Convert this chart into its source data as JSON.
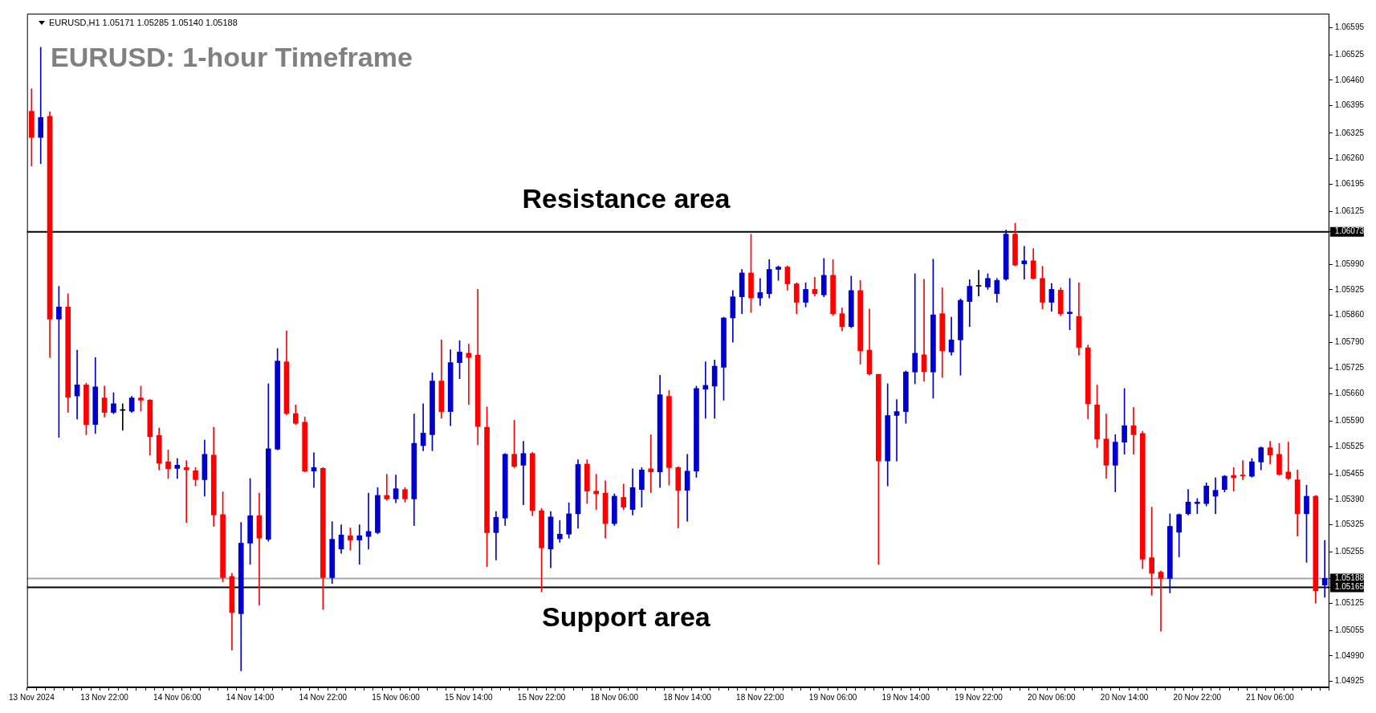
{
  "chart_data": {
    "type": "candlestick",
    "title": "EURUSD: 1-hour Timeframe",
    "annotations": [
      "EURUSD,H1 1.05171 1.05285 1.05140 1.05188"
    ],
    "categories": [
      "13 Nov 2024",
      null,
      null,
      null,
      null,
      null,
      null,
      null,
      "13 Nov 22:00",
      null,
      null,
      null,
      null,
      null,
      null,
      null,
      "14 Nov 06:00",
      null,
      null,
      null,
      null,
      null,
      null,
      null,
      "14 Nov 14:00",
      null,
      null,
      null,
      null,
      null,
      null,
      null,
      "14 Nov 22:00",
      null,
      null,
      null,
      null,
      null,
      null,
      null,
      "15 Nov 06:00",
      null,
      null,
      null,
      null,
      null,
      null,
      null,
      "15 Nov 14:00",
      null,
      null,
      null,
      null,
      null,
      null,
      null,
      "15 Nov 22:00",
      null,
      null,
      null,
      null,
      null,
      null,
      null,
      "18 Nov 06:00",
      null,
      null,
      null,
      null,
      null,
      null,
      null,
      "18 Nov 14:00",
      null,
      null,
      null,
      null,
      null,
      null,
      null,
      "18 Nov 22:00",
      null,
      null,
      null,
      null,
      null,
      null,
      null,
      "19 Nov 06:00",
      null,
      null,
      null,
      null,
      null,
      null,
      null,
      "19 Nov 14:00",
      null,
      null,
      null,
      null,
      null,
      null,
      null,
      "19 Nov 22:00",
      null,
      null,
      null,
      null,
      null,
      null,
      null,
      "20 Nov 06:00",
      null,
      null,
      null,
      null,
      null,
      null,
      null,
      "20 Nov 14:00",
      null,
      null,
      null,
      null,
      null,
      null,
      null,
      "20 Nov 22:00",
      null,
      null,
      null,
      null,
      null,
      null,
      null,
      "21 Nov 06:00",
      null,
      null,
      null,
      null,
      null,
      null
    ],
    "ohlc": [
      [
        1.06381,
        1.06438,
        1.06241,
        1.06314
      ],
      [
        1.06314,
        1.06544,
        1.06247,
        1.06365
      ],
      [
        1.06368,
        1.06379,
        1.05752,
        1.0585
      ],
      [
        1.0585,
        1.05934,
        1.05548,
        1.05881
      ],
      [
        1.05881,
        1.05915,
        1.05612,
        1.05651
      ],
      [
        1.05654,
        1.05771,
        1.05595,
        1.05682
      ],
      [
        1.05682,
        1.05687,
        1.05555,
        1.05581
      ],
      [
        1.05581,
        1.05752,
        1.05558,
        1.05677
      ],
      [
        1.05649,
        1.05679,
        1.056,
        1.05612
      ],
      [
        1.05612,
        1.05662,
        1.05608,
        1.05634
      ],
      [
        1.05617,
        1.05634,
        1.05566,
        1.05617
      ],
      [
        1.05615,
        1.05653,
        1.05612,
        1.05649
      ],
      [
        1.05649,
        1.05679,
        1.05615,
        1.05643
      ],
      [
        1.05643,
        1.05645,
        1.05503,
        1.0555
      ],
      [
        1.05553,
        1.05572,
        1.05465,
        1.05482
      ],
      [
        1.05486,
        1.05516,
        1.05443,
        1.05468
      ],
      [
        1.05469,
        1.05494,
        1.05443,
        1.05477
      ],
      [
        1.05471,
        1.05489,
        1.05331,
        1.05465
      ],
      [
        1.05463,
        1.05471,
        1.05424,
        1.0544
      ],
      [
        1.0544,
        1.05541,
        1.05398,
        1.05505
      ],
      [
        1.05503,
        1.05574,
        1.05321,
        1.0535
      ],
      [
        1.05351,
        1.05409,
        1.05179,
        1.0519
      ],
      [
        1.05193,
        1.05201,
        1.05005,
        1.05101
      ],
      [
        1.05098,
        1.05331,
        1.04952,
        1.05278
      ],
      [
        1.05278,
        1.05443,
        1.05224,
        1.05348
      ],
      [
        1.05348,
        1.05406,
        1.0512,
        1.05291
      ],
      [
        1.05288,
        1.05685,
        1.05283,
        1.05519
      ],
      [
        1.05518,
        1.05775,
        1.05516,
        1.05743
      ],
      [
        1.05741,
        1.0582,
        1.05606,
        1.05609
      ],
      [
        1.05609,
        1.05631,
        1.05581,
        1.05584
      ],
      [
        1.05587,
        1.056,
        1.0546,
        1.05462
      ],
      [
        1.05462,
        1.05509,
        1.0542,
        1.05471
      ],
      [
        1.05469,
        1.05471,
        1.05109,
        1.0519
      ],
      [
        1.0519,
        1.05333,
        1.05175,
        1.05288
      ],
      [
        1.05263,
        1.05325,
        1.05252,
        1.05299
      ],
      [
        1.05297,
        1.05317,
        1.0526,
        1.05286
      ],
      [
        1.05286,
        1.05325,
        1.05224,
        1.05297
      ],
      [
        1.05295,
        1.05406,
        1.05263,
        1.05308
      ],
      [
        1.05305,
        1.0542,
        1.05302,
        1.054
      ],
      [
        1.054,
        1.05454,
        1.05387,
        1.05391
      ],
      [
        1.05391,
        1.05452,
        1.05381,
        1.05417
      ],
      [
        1.05415,
        1.0542,
        1.05383,
        1.05391
      ],
      [
        1.05391,
        1.05608,
        1.05323,
        1.05533
      ],
      [
        1.05527,
        1.05634,
        1.05514,
        1.05559
      ],
      [
        1.05555,
        1.05713,
        1.05514,
        1.05692
      ],
      [
        1.05692,
        1.05797,
        1.05597,
        1.05614
      ],
      [
        1.05614,
        1.05772,
        1.05578,
        1.05739
      ],
      [
        1.05739,
        1.05795,
        1.05698,
        1.05766
      ],
      [
        1.05763,
        1.05786,
        1.05632,
        1.05752
      ],
      [
        1.05758,
        1.05926,
        1.05529,
        1.05576
      ],
      [
        1.05574,
        1.05626,
        1.05218,
        1.05305
      ],
      [
        1.05305,
        1.05359,
        1.05235,
        1.05344
      ],
      [
        1.05342,
        1.05507,
        1.05323,
        1.05505
      ],
      [
        1.05505,
        1.05592,
        1.05471,
        1.05474
      ],
      [
        1.05477,
        1.05538,
        1.05376,
        1.05507
      ],
      [
        1.05507,
        1.0551,
        1.05348,
        1.05361
      ],
      [
        1.05361,
        1.05367,
        1.05154,
        1.05266
      ],
      [
        1.05263,
        1.05359,
        1.05215,
        1.05345
      ],
      [
        1.05289,
        1.05336,
        1.0528,
        1.05301
      ],
      [
        1.05301,
        1.05381,
        1.05291,
        1.05353
      ],
      [
        1.05353,
        1.05491,
        1.05316,
        1.05479
      ],
      [
        1.0548,
        1.05491,
        1.05379,
        1.05411
      ],
      [
        1.05411,
        1.05454,
        1.05364,
        1.05404
      ],
      [
        1.05406,
        1.05437,
        1.05291,
        1.05328
      ],
      [
        1.05328,
        1.05404,
        1.05323,
        1.05398
      ],
      [
        1.05395,
        1.05429,
        1.05364,
        1.0537
      ],
      [
        1.05364,
        1.05468,
        1.0535,
        1.0542
      ],
      [
        1.05415,
        1.05471,
        1.0537,
        1.05465
      ],
      [
        1.05468,
        1.05555,
        1.05407,
        1.0546
      ],
      [
        1.0546,
        1.05707,
        1.0542,
        1.05657
      ],
      [
        1.05653,
        1.05668,
        1.05426,
        1.05471
      ],
      [
        1.05471,
        1.05473,
        1.05317,
        1.05413
      ],
      [
        1.05413,
        1.05505,
        1.05334,
        1.05462
      ],
      [
        1.05462,
        1.05679,
        1.05446,
        1.05673
      ],
      [
        1.05671,
        1.05741,
        1.05597,
        1.05681
      ],
      [
        1.05679,
        1.05746,
        1.05597,
        1.0573
      ],
      [
        1.05727,
        1.05855,
        1.05643,
        1.05853
      ],
      [
        1.05853,
        1.05923,
        1.05791,
        1.05907
      ],
      [
        1.05907,
        1.05977,
        1.05864,
        1.05968
      ],
      [
        1.05968,
        1.06067,
        1.05867,
        1.05904
      ],
      [
        1.05904,
        1.05954,
        1.05885,
        1.05918
      ],
      [
        1.05915,
        1.06002,
        1.05904,
        1.05977
      ],
      [
        1.05977,
        1.05986,
        1.05949,
        1.05983
      ],
      [
        1.05983,
        1.05986,
        1.05924,
        1.0594
      ],
      [
        1.0594,
        1.05943,
        1.05864,
        1.05893
      ],
      [
        1.05893,
        1.05943,
        1.05881,
        1.05926
      ],
      [
        1.05926,
        1.05957,
        1.05909,
        1.05915
      ],
      [
        1.05912,
        1.06005,
        1.05907,
        1.05962
      ],
      [
        1.05962,
        1.06002,
        1.05859,
        1.05864
      ],
      [
        1.05864,
        1.05879,
        1.0582,
        1.05831
      ],
      [
        1.05831,
        1.0596,
        1.05828,
        1.05923
      ],
      [
        1.05923,
        1.05949,
        1.05735,
        1.05769
      ],
      [
        1.05771,
        1.05876,
        1.05707,
        1.0571
      ],
      [
        1.05709,
        1.05709,
        1.05224,
        1.05488
      ],
      [
        1.05488,
        1.05685,
        1.05424,
        1.05604
      ],
      [
        1.05604,
        1.05645,
        1.05488,
        1.05614
      ],
      [
        1.05614,
        1.05718,
        1.05584,
        1.05715
      ],
      [
        1.05715,
        1.05966,
        1.05685,
        1.05763
      ],
      [
        1.05759,
        1.05952,
        1.05692,
        1.05716
      ],
      [
        1.05715,
        1.06003,
        1.05648,
        1.05861
      ],
      [
        1.05864,
        1.0593,
        1.05701,
        1.05769
      ],
      [
        1.05766,
        1.05855,
        1.05758,
        1.05797
      ],
      [
        1.05797,
        1.05902,
        1.05707,
        1.05898
      ],
      [
        1.05895,
        1.05951,
        1.05831,
        1.05934
      ],
      [
        1.05934,
        1.05975,
        1.05909,
        1.05934
      ],
      [
        1.05932,
        1.05966,
        1.05926,
        1.05954
      ],
      [
        1.05915,
        1.05954,
        1.05893,
        1.05949
      ],
      [
        1.05952,
        1.06078,
        1.05949,
        1.06067
      ],
      [
        1.06067,
        1.06095,
        1.05986,
        1.05988
      ],
      [
        1.05991,
        1.06036,
        1.05952,
        1.05999
      ],
      [
        1.05999,
        1.0603,
        1.05952,
        1.05954
      ],
      [
        1.05954,
        1.05985,
        1.05876,
        1.05893
      ],
      [
        1.05893,
        1.05941,
        1.0587,
        1.05926
      ],
      [
        1.05924,
        1.0593,
        1.05859,
        1.05864
      ],
      [
        1.05864,
        1.05954,
        1.05823,
        1.05868
      ],
      [
        1.05857,
        1.05943,
        1.05758,
        1.05778
      ],
      [
        1.05777,
        1.05784,
        1.05595,
        1.05634
      ],
      [
        1.05631,
        1.05682,
        1.05522,
        1.05544
      ],
      [
        1.05544,
        1.05608,
        1.05443,
        1.05477
      ],
      [
        1.05477,
        1.05555,
        1.05409,
        1.05536
      ],
      [
        1.05536,
        1.05673,
        1.05505,
        1.05578
      ],
      [
        1.05578,
        1.05625,
        1.05505,
        1.05555
      ],
      [
        1.05558,
        1.05564,
        1.05213,
        1.05237
      ],
      [
        1.05241,
        1.0537,
        1.05145,
        1.05201
      ],
      [
        1.05204,
        1.05207,
        1.05053,
        1.05188
      ],
      [
        1.05188,
        1.05353,
        1.05151,
        1.05321
      ],
      [
        1.05306,
        1.05353,
        1.05243,
        1.05351
      ],
      [
        1.05353,
        1.05415,
        1.0535,
        1.05383
      ],
      [
        1.05379,
        1.05392,
        1.05353,
        1.05383
      ],
      [
        1.05379,
        1.05432,
        1.05373,
        1.05424
      ],
      [
        1.05398,
        1.05445,
        1.05353,
        1.05413
      ],
      [
        1.05415,
        1.05451,
        1.05409,
        1.05449
      ],
      [
        1.05451,
        1.05471,
        1.05411,
        1.05445
      ],
      [
        1.05452,
        1.05489,
        1.0544,
        1.0545
      ],
      [
        1.05449,
        1.05494,
        1.05446,
        1.05486
      ],
      [
        1.05485,
        1.05524,
        1.05465,
        1.05522
      ],
      [
        1.05522,
        1.05538,
        1.0548,
        1.05503
      ],
      [
        1.05505,
        1.05533,
        1.05451,
        1.05454
      ],
      [
        1.0546,
        1.05536,
        1.0544,
        1.05443
      ],
      [
        1.0544,
        1.05465,
        1.05296,
        1.05353
      ],
      [
        1.05353,
        1.05426,
        1.05229,
        1.05398
      ],
      [
        1.05398,
        1.054,
        1.05125,
        1.05156
      ],
      [
        1.05171,
        1.05285,
        1.0514,
        1.05188
      ]
    ],
    "colors": [
      "#ff0000",
      "#0000cc",
      "#ff0000",
      "#0000cc",
      "#ff0000",
      "#0000cc",
      "#ff0000",
      "#0000cc",
      "#ff0000",
      "#0000cc",
      "#000000",
      "#0000cc",
      "#ff0000",
      "#ff0000",
      "#ff0000",
      "#ff0000",
      "#0000cc",
      "#ff0000",
      "#ff0000",
      "#0000cc",
      "#ff0000",
      "#ff0000",
      "#ff0000",
      "#0000cc",
      "#0000cc",
      "#ff0000",
      "#0000cc",
      "#0000cc",
      "#ff0000",
      "#ff0000",
      "#ff0000",
      "#0000cc",
      "#ff0000",
      "#0000cc",
      "#0000cc",
      "#ff0000",
      "#0000cc",
      "#0000cc",
      "#0000cc",
      "#ff0000",
      "#0000cc",
      "#ff0000",
      "#0000cc",
      "#0000cc",
      "#0000cc",
      "#ff0000",
      "#0000cc",
      "#0000cc",
      "#ff0000",
      "#ff0000",
      "#ff0000",
      "#0000cc",
      "#0000cc",
      "#ff0000",
      "#0000cc",
      "#ff0000",
      "#ff0000",
      "#0000cc",
      "#0000cc",
      "#0000cc",
      "#0000cc",
      "#ff0000",
      "#ff0000",
      "#ff0000",
      "#0000cc",
      "#ff0000",
      "#0000cc",
      "#0000cc",
      "#ff0000",
      "#0000cc",
      "#ff0000",
      "#ff0000",
      "#0000cc",
      "#0000cc",
      "#0000cc",
      "#0000cc",
      "#0000cc",
      "#0000cc",
      "#0000cc",
      "#ff0000",
      "#0000cc",
      "#0000cc",
      "#0000cc",
      "#ff0000",
      "#ff0000",
      "#0000cc",
      "#ff0000",
      "#0000cc",
      "#ff0000",
      "#ff0000",
      "#0000cc",
      "#ff0000",
      "#ff0000",
      "#ff0000",
      "#0000cc",
      "#0000cc",
      "#0000cc",
      "#0000cc",
      "#ff0000",
      "#0000cc",
      "#ff0000",
      "#0000cc",
      "#0000cc",
      "#0000cc",
      "#000000",
      "#0000cc",
      "#0000cc",
      "#0000cc",
      "#ff0000",
      "#0000cc",
      "#ff0000",
      "#ff0000",
      "#0000cc",
      "#ff0000",
      "#0000cc",
      "#ff0000",
      "#ff0000",
      "#ff0000",
      "#ff0000",
      "#0000cc",
      "#0000cc",
      "#ff0000",
      "#ff0000",
      "#ff0000",
      "#ff0000",
      "#0000cc",
      "#0000cc",
      "#0000cc",
      "#0000cc",
      "#0000cc",
      "#0000cc",
      "#0000cc",
      "#ff0000",
      "#ff0000",
      "#0000cc",
      "#0000cc",
      "#ff0000",
      "#ff0000",
      "#ff0000",
      "#ff0000",
      "#0000cc",
      "#ff0000",
      "#0000cc"
    ],
    "ylim": [
      1.0491,
      1.0663
    ],
    "yticks": [
      1.06595,
      1.06525,
      {
        "value": 1.0646,
        "label": "1.06460"
      },
      1.06395,
      1.06325,
      {
        "value": 1.0626,
        "label": "1.06260"
      },
      1.06195,
      1.06125,
      1.06073,
      {
        "value": 1.0599,
        "label": "1.05990"
      },
      1.05925,
      {
        "value": 1.0586,
        "label": "1.05860"
      },
      {
        "value": 1.0579,
        "label": "1.05790"
      },
      1.05725,
      {
        "value": 1.0566,
        "label": "1.05660"
      },
      {
        "value": 1.0559,
        "label": "1.05590"
      },
      1.05525,
      1.05455,
      {
        "value": 1.0539,
        "label": "1.05390"
      },
      1.05325,
      1.05255,
      1.05188,
      1.05165,
      1.05125,
      1.05055,
      {
        "value": 1.0499,
        "label": "1.04990"
      },
      1.04925
    ],
    "ref_lines": [
      {
        "axis": "y",
        "value": 1.06073,
        "label": "Resistance area",
        "color": "#000000"
      },
      {
        "axis": "y",
        "value": 1.05188,
        "color": "#a0aab4"
      },
      {
        "axis": "y",
        "value": 1.05165,
        "label": "Support area",
        "color": "#000000"
      }
    ]
  }
}
